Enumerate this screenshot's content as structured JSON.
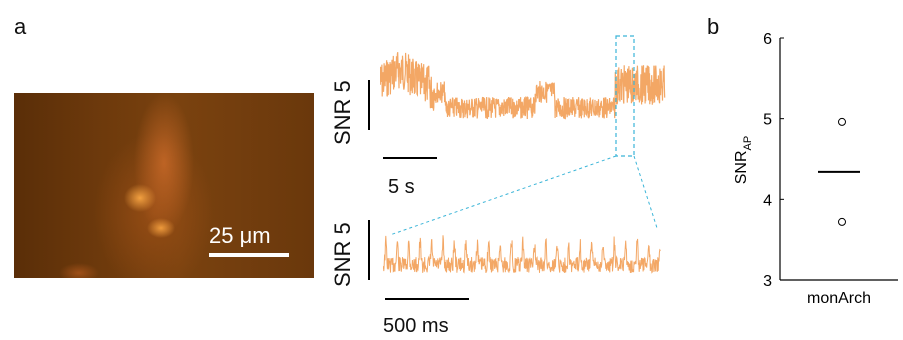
{
  "panel_a": {
    "label": "a",
    "scalebar_image": "25 μm",
    "trace_top": {
      "ylabel": "SNR 5",
      "time_scale": "5 s"
    },
    "trace_bottom": {
      "ylabel": "SNR 5",
      "time_scale": "500 ms"
    },
    "colors": {
      "trace": "#f3a765",
      "zoom_box": "#3bb5d8"
    }
  },
  "panel_b": {
    "label": "b",
    "chart_data": {
      "type": "scatter",
      "categories": [
        "monArch"
      ],
      "ylabel": "SNR",
      "ylabel_sub": "AP",
      "yticks": [
        "6",
        "5",
        "4",
        "3"
      ],
      "ylim": [
        3,
        6
      ],
      "points": [
        4.96,
        3.72
      ],
      "mean": 4.34,
      "grid": false
    }
  }
}
